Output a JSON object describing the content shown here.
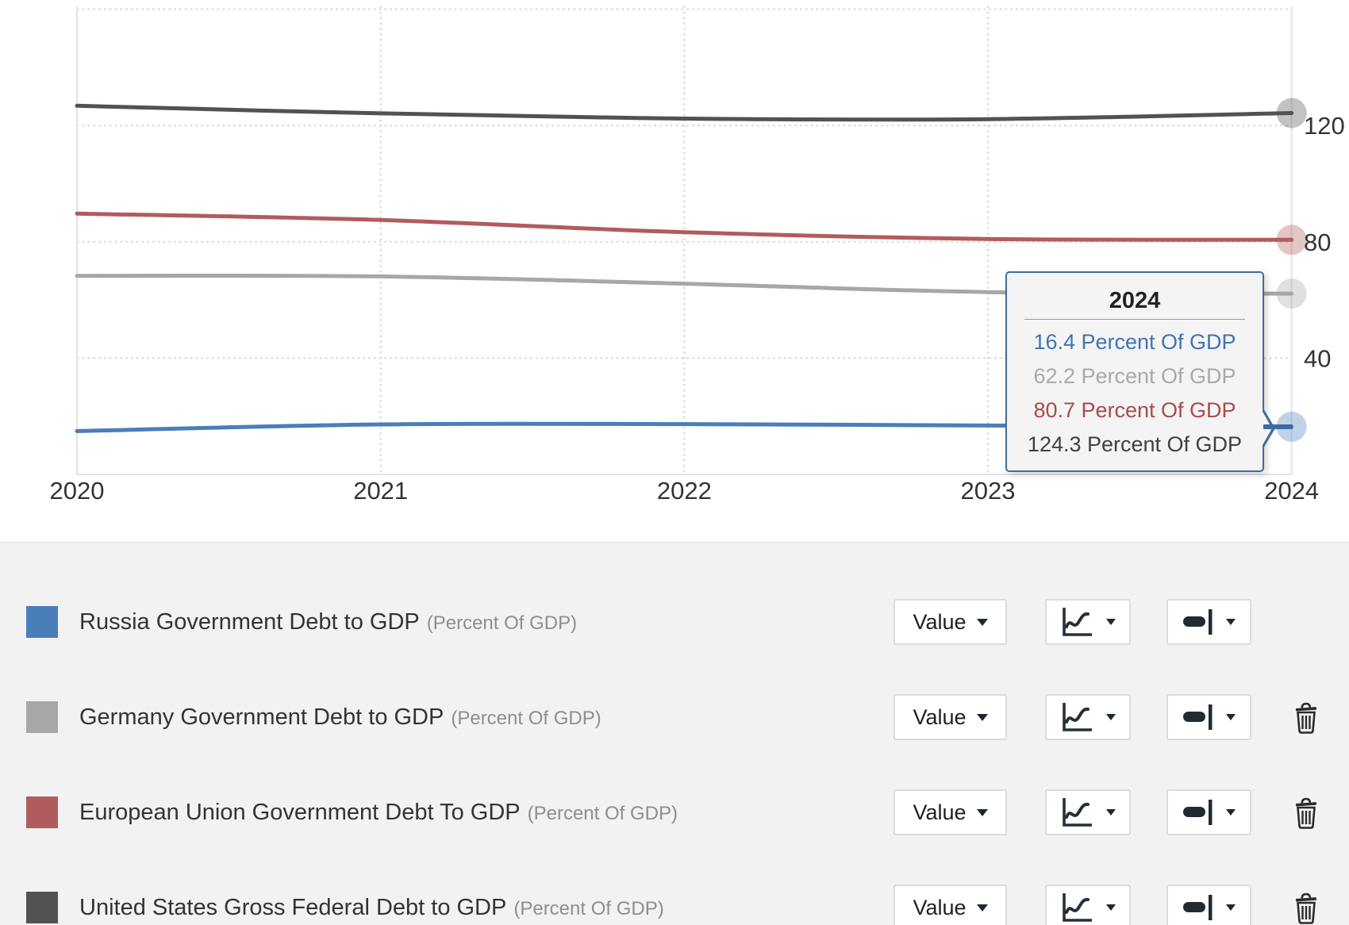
{
  "chart_data": {
    "type": "line",
    "title": "",
    "x": [
      2020,
      2021,
      2022,
      2023,
      2024
    ],
    "x_tick_labels": [
      "2020",
      "2021",
      "2022",
      "2023",
      "2024"
    ],
    "series": [
      {
        "name": "United States Gross Federal Debt to GDP",
        "unit": "Percent Of GDP",
        "color": "#525254",
        "values": [
          126.8,
          124.2,
          122.4,
          122.2,
          124.3
        ]
      },
      {
        "name": "European Union Government Debt To GDP",
        "unit": "Percent Of GDP",
        "color": "#b15c5c",
        "values": [
          89.7,
          87.5,
          83.3,
          81.0,
          80.7
        ]
      },
      {
        "name": "Germany Government Debt to GDP",
        "unit": "Percent Of GDP",
        "color": "#a7a7a7",
        "values": [
          68.3,
          68.1,
          65.6,
          62.7,
          62.2
        ]
      },
      {
        "name": "Russia Government Debt to GDP",
        "unit": "Percent Of GDP",
        "color": "#4a7ebb",
        "values": [
          14.9,
          17.2,
          17.3,
          16.8,
          16.4
        ]
      }
    ],
    "ylim": [
      0,
      161
    ],
    "yticks": [
      40,
      80,
      120,
      160
    ],
    "ytick_labels": [
      "40",
      "80",
      "120"
    ],
    "grid": "dotted",
    "legend_position": "bottom-panel",
    "gridline_color": "#d9d9d9",
    "border_color": "#e3e3e3",
    "marker_radius": 19
  },
  "tooltip": {
    "title": "2024",
    "rows": [
      {
        "text": "16.4 Percent Of GDP",
        "color": "#3f74b3"
      },
      {
        "text": "62.2 Percent Of GDP",
        "color": "#a9a9a9"
      },
      {
        "text": "80.7 Percent Of GDP",
        "color": "#aa4b4b"
      },
      {
        "text": "124.3 Percent Of GDP",
        "color": "#404042"
      }
    ],
    "border_color": "#3f6e9e",
    "background": "#f4f4f4"
  },
  "legend": {
    "value_button_label": "Value",
    "rows": [
      {
        "label": "Russia Government Debt to GDP",
        "unit": "(Percent Of GDP)",
        "color": "#4a7ebb",
        "has_delete": false
      },
      {
        "label": "Germany Government Debt to GDP",
        "unit": "(Percent Of GDP)",
        "color": "#a7a7a7",
        "has_delete": true
      },
      {
        "label": "European Union Government Debt To GDP",
        "unit": "(Percent Of GDP)",
        "color": "#b15c5c",
        "has_delete": true
      },
      {
        "label": "United States Gross Federal Debt to GDP",
        "unit": "(Percent Of GDP)",
        "color": "#525254",
        "has_delete": true
      }
    ],
    "icons": [
      "value-dropdown",
      "line-chart-type-icon",
      "line-style-icon",
      "trash-icon"
    ]
  }
}
